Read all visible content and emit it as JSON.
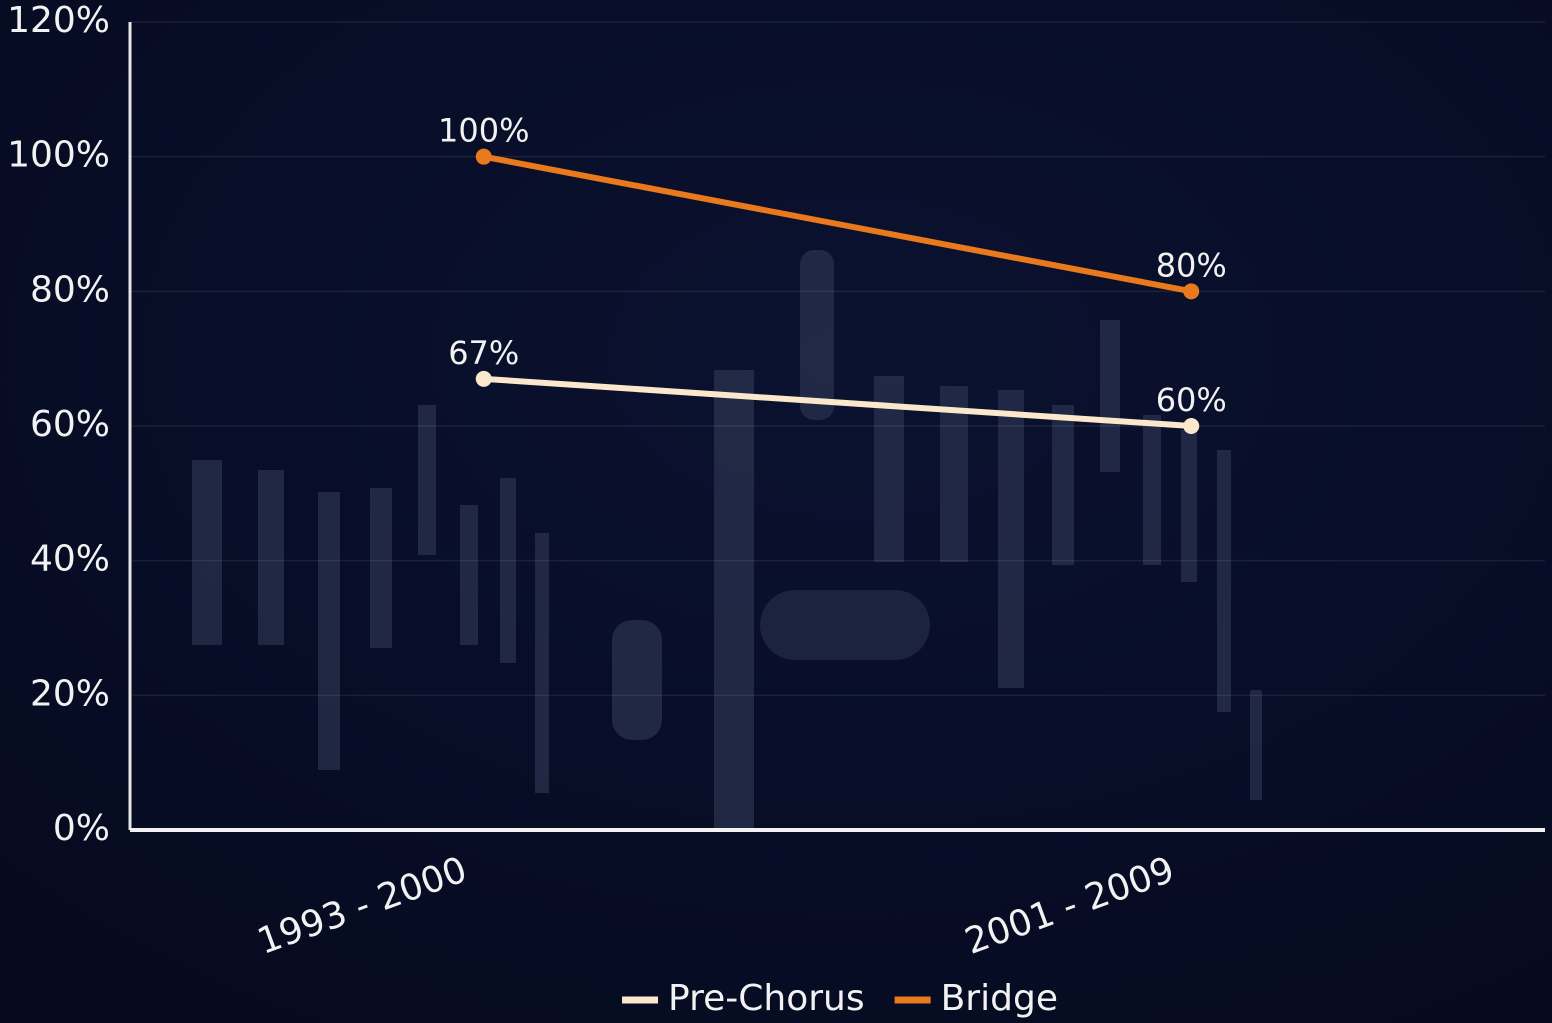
{
  "chart_data": {
    "type": "line",
    "categories": [
      "1993 - 2000",
      "2001 - 2009"
    ],
    "series": [
      {
        "name": "Pre-Chorus",
        "color": "#fbe8cc",
        "values": [
          67,
          60
        ],
        "value_labels": [
          "67%",
          "60%"
        ]
      },
      {
        "name": "Bridge",
        "color": "#e8791c",
        "values": [
          100,
          80
        ],
        "value_labels": [
          "100%",
          "80%"
        ]
      }
    ],
    "ylim": [
      0,
      120
    ],
    "yticks": [
      {
        "value": 0,
        "label": "0%"
      },
      {
        "value": 20,
        "label": "20%"
      },
      {
        "value": 40,
        "label": "40%"
      },
      {
        "value": 60,
        "label": "60%"
      },
      {
        "value": 80,
        "label": "80%"
      },
      {
        "value": 100,
        "label": "100%"
      },
      {
        "value": 120,
        "label": "120%"
      }
    ],
    "grid": true
  }
}
